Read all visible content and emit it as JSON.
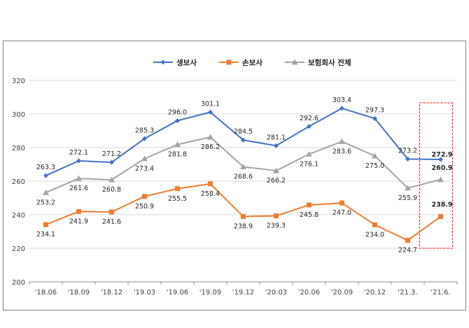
{
  "chart_data": {
    "type": "line",
    "categories": [
      "'18.06",
      "'18.09",
      "'18.12",
      "'19.03",
      "'19.06",
      "'19.09",
      "'19.12",
      "'20.03",
      "'20.06",
      "'20.09",
      "'20.12",
      "'21.3.",
      "'21.6."
    ],
    "ylim": [
      200,
      320
    ],
    "yticks": [
      200,
      220,
      240,
      260,
      280,
      300,
      320
    ],
    "grid": true,
    "legend": "top-center",
    "series": [
      {
        "name": "생보사",
        "color": "#4472c4",
        "marker": "diamond",
        "values": [
          263.3,
          272.1,
          271.2,
          285.3,
          296.0,
          301.1,
          284.5,
          281.1,
          292.6,
          303.4,
          297.3,
          273.2,
          272.9
        ],
        "labels": [
          "263.3",
          "272.1",
          "271.2",
          "285.3",
          "296.0",
          "301.1",
          "284.5",
          "281.1",
          "292.6",
          "303.4",
          "297.3",
          "273.2",
          "272.9"
        ]
      },
      {
        "name": "손보사",
        "color": "#ed7d31",
        "marker": "square",
        "values": [
          234.1,
          241.9,
          241.6,
          250.9,
          255.5,
          258.4,
          238.9,
          239.3,
          245.8,
          247.0,
          234.0,
          224.7,
          238.9
        ],
        "labels": [
          "234.1",
          "241.9",
          "241.6",
          "250.9",
          "255.5",
          "258.4",
          "238.9",
          "239.3",
          "245.8",
          "247.0",
          "234.0",
          "224.7",
          "238.9"
        ]
      },
      {
        "name": "보험회사 전체",
        "color": "#a5a5a5",
        "marker": "triangle",
        "values": [
          253.2,
          261.6,
          260.8,
          273.4,
          281.8,
          286.2,
          268.6,
          266.2,
          276.1,
          283.6,
          275.0,
          255.9,
          260.9
        ],
        "labels": [
          "253.2",
          "261.6",
          "260.8",
          "273.4",
          "281.8",
          "286.2",
          "268.6",
          "266.2",
          "276.1",
          "283.6",
          "275.0",
          "255.9",
          "260.9"
        ]
      }
    ],
    "highlight_category": "'21.6."
  }
}
